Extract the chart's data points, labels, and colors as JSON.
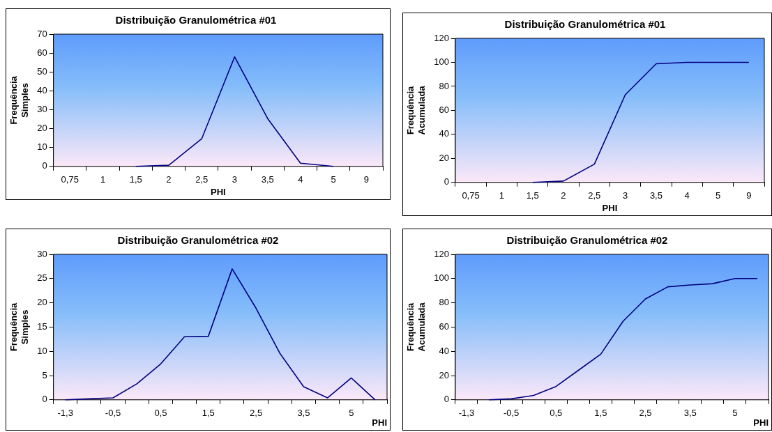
{
  "chart_data": [
    {
      "type": "line",
      "title": "Distribuição Granulométrica #01",
      "xlabel": "PHI",
      "ylabel": "Frequência Simples",
      "categories": [
        "0,75",
        "1",
        "1,5",
        "2",
        "2,5",
        "3",
        "3,5",
        "4",
        "5",
        "9"
      ],
      "series": [
        {
          "color": "#000080",
          "values": [
            null,
            null,
            0,
            0.6,
            14.6,
            58,
            25.4,
            1.7,
            0,
            null
          ]
        }
      ],
      "ylim": [
        0,
        70
      ],
      "yticks": [
        0,
        10,
        20,
        30,
        40,
        50,
        60,
        70
      ],
      "marker": "none"
    },
    {
      "type": "line",
      "title": "Distribuição Granulométrica #01",
      "xlabel": "PHI",
      "ylabel": "Frequência Acumulada",
      "categories": [
        "0,75",
        "1",
        "1,5",
        "2",
        "2,5",
        "3",
        "3,5",
        "4",
        "5",
        "9"
      ],
      "series": [
        {
          "color": "#000080",
          "values": [
            null,
            null,
            0,
            1.1,
            15.2,
            73,
            98.8,
            100,
            100,
            100
          ]
        }
      ],
      "ylim": [
        0,
        120
      ],
      "yticks": [
        0,
        20,
        40,
        60,
        80,
        100,
        120
      ],
      "marker": "none"
    },
    {
      "type": "line",
      "title": "Distribuição Granulométrica #02",
      "xlabel": "PHI",
      "ylabel": "Frequência Simples",
      "categories": [
        "-1,3",
        null,
        "-0,5",
        null,
        "0,5",
        null,
        "1,5",
        null,
        "2,5",
        null,
        "3,5",
        null,
        "5",
        null
      ],
      "series": [
        {
          "color": "#000080",
          "values": [
            0,
            0.2,
            0.4,
            3.3,
            7.4,
            13,
            13.1,
            27,
            18.9,
            9.6,
            2.7,
            0.4,
            4.5,
            0
          ]
        }
      ],
      "ylim": [
        0,
        30
      ],
      "yticks": [
        0,
        5,
        10,
        15,
        20,
        25,
        30
      ],
      "marker": "none"
    },
    {
      "type": "line",
      "title": "Distribuição Granulométrica #02",
      "xlabel": "PHI",
      "ylabel": "Frequência Acumulada",
      "categories": [
        "-1,3",
        null,
        "-0,5",
        null,
        "0,5",
        null,
        "1,5",
        null,
        "2,5",
        null,
        "3,5",
        null,
        "5",
        null
      ],
      "series": [
        {
          "color": "#000080",
          "values": [
            null,
            0,
            0.8,
            3.6,
            11,
            24.3,
            37.6,
            64.8,
            83.2,
            93.2,
            94.7,
            95.8,
            100,
            100
          ]
        }
      ],
      "ylim": [
        0,
        120
      ],
      "yticks": [
        0,
        20,
        40,
        60,
        80,
        100,
        120
      ],
      "marker": "none"
    }
  ]
}
